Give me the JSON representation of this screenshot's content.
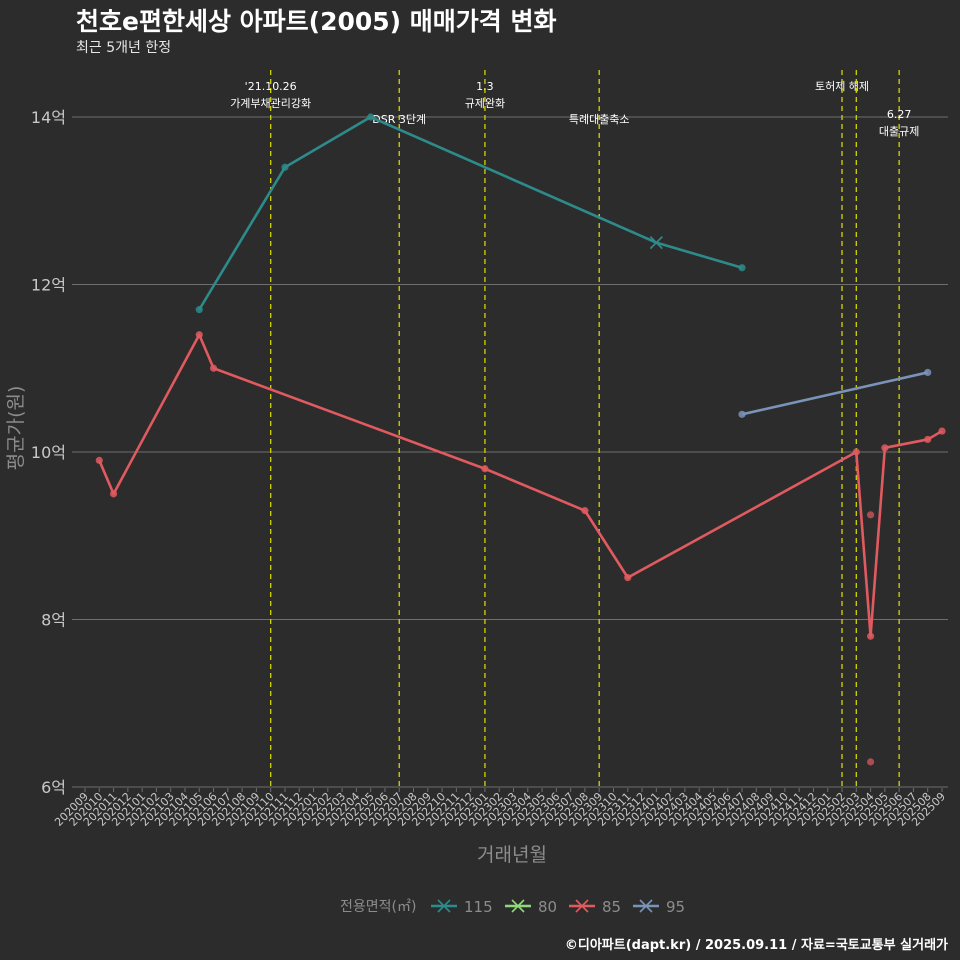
{
  "title": "천호e편한세상 아파트(2005) 매매가격 변화",
  "subtitle": "최근 5개년 한정",
  "caption": "©디아파트(dapt.kr) / 2025.09.11 / 자료=국토교통부 실거래가",
  "colors": {
    "background": "#2c2c2c",
    "grid": "#6e6e6e",
    "event_line": "#d4d400",
    "axis_text": "#c8c8c8",
    "axis_title": "#8c8c8c",
    "annotation_text": "#ffffff"
  },
  "chart_data": {
    "type": "line",
    "xlabel": "거래년월",
    "ylabel": "평균가(원)",
    "ylim": [
      6,
      14.6
    ],
    "y_ticks": [
      {
        "value": 6,
        "label": "6억"
      },
      {
        "value": 8,
        "label": "8억"
      },
      {
        "value": 10,
        "label": "10억"
      },
      {
        "value": 12,
        "label": "12억"
      },
      {
        "value": 14,
        "label": "14억"
      }
    ],
    "x_categories": [
      "202009",
      "202010",
      "202011",
      "202012",
      "202101",
      "202102",
      "202103",
      "202104",
      "202105",
      "202106",
      "202107",
      "202108",
      "202109",
      "202110",
      "202111",
      "202112",
      "202201",
      "202202",
      "202203",
      "202204",
      "202205",
      "202206",
      "202207",
      "202208",
      "202209",
      "202210",
      "202211",
      "202212",
      "202301",
      "202302",
      "202303",
      "202304",
      "202305",
      "202306",
      "202307",
      "202308",
      "202309",
      "202310",
      "202311",
      "202312",
      "202401",
      "202402",
      "202403",
      "202404",
      "202405",
      "202406",
      "202407",
      "202408",
      "202409",
      "202410",
      "202411",
      "202412",
      "202501",
      "202502",
      "202503",
      "202504",
      "202505",
      "202506",
      "202507",
      "202508",
      "202509"
    ],
    "legend_title": "전용면적(㎡)",
    "series": [
      {
        "name": "115",
        "color": "#2e8b8b",
        "points": [
          [
            "202105",
            11.7
          ],
          [
            "202111",
            13.4
          ],
          [
            "202205",
            14.0
          ],
          [
            "202401",
            12.5
          ],
          [
            "202407",
            12.2
          ]
        ],
        "cross_markers": [
          "202401"
        ]
      },
      {
        "name": "80",
        "color": "#8fd97a",
        "points": []
      },
      {
        "name": "85",
        "color": "#e05a5f",
        "points": [
          [
            "202010",
            9.9
          ],
          [
            "202011",
            9.5
          ],
          [
            "202105",
            11.4
          ],
          [
            "202106",
            11.0
          ],
          [
            "202301",
            9.8
          ],
          [
            "202308",
            9.3
          ],
          [
            "202311",
            8.5
          ],
          [
            "202503",
            10.0
          ],
          [
            "202504",
            7.8
          ],
          [
            "202505",
            10.05
          ],
          [
            "202508",
            10.15
          ],
          [
            "202509",
            10.25
          ]
        ],
        "extra_points": [
          [
            "202504",
            9.25
          ],
          [
            "202504",
            6.3
          ]
        ]
      },
      {
        "name": "95",
        "color": "#7a93b8",
        "points": [
          [
            "202407",
            10.45
          ],
          [
            "202508",
            10.95
          ]
        ]
      }
    ],
    "events": [
      {
        "month": "202110",
        "lines": [
          "'21.10.26",
          "가계부채관리강화"
        ],
        "level": 0
      },
      {
        "month": "202207",
        "lines": [
          "DSR 3단계"
        ],
        "level": 1
      },
      {
        "month": "202301",
        "lines": [
          "1.3",
          "규제완화"
        ],
        "level": 0
      },
      {
        "month": "202309",
        "lines": [
          "특례대출축소"
        ],
        "level": 1
      },
      {
        "month": "202502",
        "lines": [
          "토허제 해제"
        ],
        "level": 0
      },
      {
        "month": "202503",
        "lines": [],
        "level": 0
      },
      {
        "month": "202506",
        "lines": [
          "6.27",
          "대출규제"
        ],
        "level": 2
      }
    ]
  }
}
